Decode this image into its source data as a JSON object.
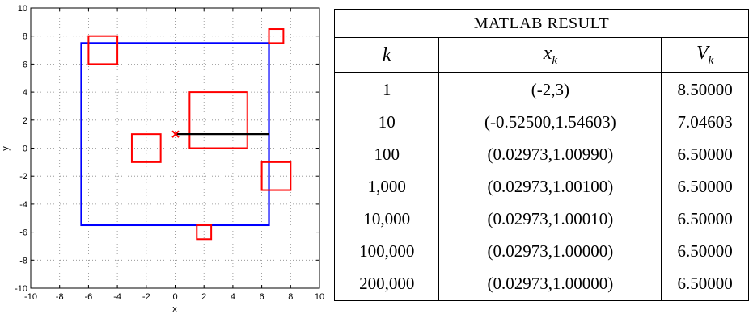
{
  "chart_data": {
    "type": "scatter",
    "title": "",
    "xlabel": "x",
    "ylabel": "y",
    "xlim": [
      -10,
      10
    ],
    "ylim": [
      -10,
      10
    ],
    "xticks": [
      -10,
      -8,
      -6,
      -4,
      -2,
      0,
      2,
      4,
      6,
      8,
      10
    ],
    "yticks": [
      -10,
      -8,
      -6,
      -4,
      -2,
      0,
      2,
      4,
      6,
      8,
      10
    ],
    "grid": true,
    "colors": {
      "boundary": "#0000ff",
      "obstacles": "#ff0000",
      "marker": "#ff0000",
      "segment": "#000000"
    },
    "boundary": {
      "x0": -6.5,
      "y0": -5.5,
      "x1": 6.5,
      "y1": 7.5
    },
    "obstacles": [
      {
        "x0": -6,
        "y0": 6,
        "x1": -4,
        "y1": 8
      },
      {
        "x0": 6.5,
        "y0": 7.5,
        "x1": 7.5,
        "y1": 8.5
      },
      {
        "x0": 1,
        "y0": 0,
        "x1": 5,
        "y1": 4
      },
      {
        "x0": -3,
        "y0": -1,
        "x1": -1,
        "y1": 1
      },
      {
        "x0": 6,
        "y0": -3,
        "x1": 8,
        "y1": -1
      },
      {
        "x0": 1.5,
        "y0": -6.5,
        "x1": 2.5,
        "y1": -5.5
      }
    ],
    "marker": {
      "x": 0.03,
      "y": 1.0,
      "symbol": "x"
    },
    "segment": {
      "x0": 0.03,
      "y0": 1.0,
      "x1": 6.5,
      "y1": 1.0
    }
  },
  "table": {
    "title": "MATLAB RESULT",
    "headers": {
      "k": "k",
      "x": "x",
      "x_sub": "k",
      "v": "V",
      "v_sub": "k"
    },
    "rows": [
      {
        "k": "1",
        "x": "(-2,3)",
        "v": "8.50000"
      },
      {
        "k": "10",
        "x": "(-0.52500,1.54603)",
        "v": "7.04603"
      },
      {
        "k": "100",
        "x": "(0.02973,1.00990)",
        "v": "6.50000"
      },
      {
        "k": "1,000",
        "x": "(0.02973,1.00100)",
        "v": "6.50000"
      },
      {
        "k": "10,000",
        "x": "(0.02973,1.00010)",
        "v": "6.50000"
      },
      {
        "k": "100,000",
        "x": "(0.02973,1.00000)",
        "v": "6.50000"
      },
      {
        "k": "200,000",
        "x": "(0.02973,1.00000)",
        "v": "6.50000"
      }
    ]
  }
}
